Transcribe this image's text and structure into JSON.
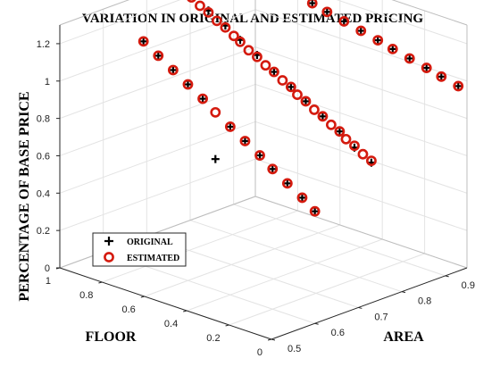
{
  "chart_data": {
    "type": "scatter3d",
    "title": "VARIATION IN ORIGINAL AND ESTIMATED PRICING",
    "xlabel": "FLOOR",
    "ylabel": "AREA",
    "zlabel": "PERCENTAGE OF BASE PRICE",
    "xlim": [
      0,
      1
    ],
    "ylim": [
      0.5,
      0.95
    ],
    "zlim": [
      0,
      1.3
    ],
    "x_ticks": [
      "1",
      "0.8",
      "0.6",
      "0.4",
      "0.2",
      "0"
    ],
    "y_ticks": [
      "0.5",
      "0.6",
      "0.7",
      "0.8",
      "0.9"
    ],
    "z_ticks": [
      "0",
      "0.2",
      "0.4",
      "0.6",
      "0.8",
      "1",
      "1.2"
    ],
    "grid": true,
    "legend_position": "bottom-left",
    "series": [
      {
        "name": "ORIGINAL",
        "marker": "plus",
        "color": "#000000",
        "points": [
          {
            "floor": 0.81,
            "area": 0.6,
            "price": 1.2
          },
          {
            "floor": 0.74,
            "area": 0.6,
            "price": 1.15
          },
          {
            "floor": 0.67,
            "area": 0.6,
            "price": 1.1
          },
          {
            "floor": 0.6,
            "area": 0.6,
            "price": 1.05
          },
          {
            "floor": 0.53,
            "area": 0.6,
            "price": 1.0
          },
          {
            "floor": 0.47,
            "area": 0.6,
            "price": 0.7
          },
          {
            "floor": 0.4,
            "area": 0.6,
            "price": 0.9
          },
          {
            "floor": 0.33,
            "area": 0.6,
            "price": 0.85
          },
          {
            "floor": 0.26,
            "area": 0.6,
            "price": 0.8
          },
          {
            "floor": 0.2,
            "area": 0.6,
            "price": 0.75
          },
          {
            "floor": 0.13,
            "area": 0.6,
            "price": 0.7
          },
          {
            "floor": 0.06,
            "area": 0.6,
            "price": 0.65
          },
          {
            "floor": 0.0,
            "area": 0.6,
            "price": 0.6
          },
          {
            "floor": 0.92,
            "area": 0.73,
            "price": 1.38
          },
          {
            "floor": 0.85,
            "area": 0.73,
            "price": 1.32
          },
          {
            "floor": 0.77,
            "area": 0.73,
            "price": 1.27
          },
          {
            "floor": 0.69,
            "area": 0.73,
            "price": 1.22
          },
          {
            "floor": 0.62,
            "area": 0.73,
            "price": 1.17
          },
          {
            "floor": 0.54,
            "area": 0.73,
            "price": 1.12
          },
          {
            "floor": 0.46,
            "area": 0.73,
            "price": 1.06
          },
          {
            "floor": 0.38,
            "area": 0.73,
            "price": 1.01
          },
          {
            "floor": 0.31,
            "area": 0.73,
            "price": 0.96
          },
          {
            "floor": 0.23,
            "area": 0.73,
            "price": 0.91
          },
          {
            "floor": 0.15,
            "area": 0.73,
            "price": 0.86
          },
          {
            "floor": 0.08,
            "area": 0.73,
            "price": 0.8
          },
          {
            "floor": 0.0,
            "area": 0.73,
            "price": 0.75
          },
          {
            "floor": 1.0,
            "area": 0.93,
            "price": 1.25
          },
          {
            "floor": 0.92,
            "area": 0.93,
            "price": 1.23
          },
          {
            "floor": 0.85,
            "area": 0.93,
            "price": 1.21
          },
          {
            "floor": 0.77,
            "area": 0.93,
            "price": 1.19
          },
          {
            "floor": 0.69,
            "area": 0.93,
            "price": 1.17
          },
          {
            "floor": 0.62,
            "area": 0.93,
            "price": 1.15
          },
          {
            "floor": 0.54,
            "area": 0.93,
            "price": 1.13
          },
          {
            "floor": 0.46,
            "area": 0.93,
            "price": 1.11
          },
          {
            "floor": 0.38,
            "area": 0.93,
            "price": 1.09
          },
          {
            "floor": 0.31,
            "area": 0.93,
            "price": 1.07
          },
          {
            "floor": 0.23,
            "area": 0.93,
            "price": 1.05
          },
          {
            "floor": 0.15,
            "area": 0.93,
            "price": 1.03
          },
          {
            "floor": 0.08,
            "area": 0.93,
            "price": 1.01
          },
          {
            "floor": 0.0,
            "area": 0.93,
            "price": 0.99
          }
        ]
      },
      {
        "name": "ESTIMATED",
        "marker": "circle",
        "color": "#d41a0e",
        "points": [
          {
            "floor": 0.81,
            "area": 0.6,
            "price": 1.2
          },
          {
            "floor": 0.74,
            "area": 0.6,
            "price": 1.15
          },
          {
            "floor": 0.67,
            "area": 0.6,
            "price": 1.1
          },
          {
            "floor": 0.6,
            "area": 0.6,
            "price": 1.05
          },
          {
            "floor": 0.53,
            "area": 0.6,
            "price": 1.0
          },
          {
            "floor": 0.47,
            "area": 0.6,
            "price": 0.95
          },
          {
            "floor": 0.4,
            "area": 0.6,
            "price": 0.9
          },
          {
            "floor": 0.33,
            "area": 0.6,
            "price": 0.85
          },
          {
            "floor": 0.26,
            "area": 0.6,
            "price": 0.8
          },
          {
            "floor": 0.2,
            "area": 0.6,
            "price": 0.75
          },
          {
            "floor": 0.13,
            "area": 0.6,
            "price": 0.7
          },
          {
            "floor": 0.06,
            "area": 0.6,
            "price": 0.65
          },
          {
            "floor": 0.0,
            "area": 0.6,
            "price": 0.6
          },
          {
            "floor": 0.92,
            "area": 0.73,
            "price": 1.36
          },
          {
            "floor": 0.88,
            "area": 0.73,
            "price": 1.33
          },
          {
            "floor": 0.85,
            "area": 0.73,
            "price": 1.31
          },
          {
            "floor": 0.81,
            "area": 0.73,
            "price": 1.28
          },
          {
            "floor": 0.77,
            "area": 0.73,
            "price": 1.26
          },
          {
            "floor": 0.73,
            "area": 0.73,
            "price": 1.23
          },
          {
            "floor": 0.69,
            "area": 0.73,
            "price": 1.21
          },
          {
            "floor": 0.65,
            "area": 0.73,
            "price": 1.18
          },
          {
            "floor": 0.62,
            "area": 0.73,
            "price": 1.16
          },
          {
            "floor": 0.58,
            "area": 0.73,
            "price": 1.13
          },
          {
            "floor": 0.54,
            "area": 0.73,
            "price": 1.11
          },
          {
            "floor": 0.5,
            "area": 0.73,
            "price": 1.08
          },
          {
            "floor": 0.46,
            "area": 0.73,
            "price": 1.06
          },
          {
            "floor": 0.42,
            "area": 0.73,
            "price": 1.03
          },
          {
            "floor": 0.38,
            "area": 0.73,
            "price": 1.01
          },
          {
            "floor": 0.35,
            "area": 0.73,
            "price": 0.98
          },
          {
            "floor": 0.31,
            "area": 0.73,
            "price": 0.96
          },
          {
            "floor": 0.27,
            "area": 0.73,
            "price": 0.93
          },
          {
            "floor": 0.23,
            "area": 0.73,
            "price": 0.91
          },
          {
            "floor": 0.19,
            "area": 0.73,
            "price": 0.88
          },
          {
            "floor": 0.15,
            "area": 0.73,
            "price": 0.86
          },
          {
            "floor": 0.12,
            "area": 0.73,
            "price": 0.83
          },
          {
            "floor": 0.08,
            "area": 0.73,
            "price": 0.81
          },
          {
            "floor": 0.04,
            "area": 0.73,
            "price": 0.78
          },
          {
            "floor": 0.0,
            "area": 0.73,
            "price": 0.76
          },
          {
            "floor": 1.0,
            "area": 0.93,
            "price": 1.25
          },
          {
            "floor": 0.92,
            "area": 0.93,
            "price": 1.23
          },
          {
            "floor": 0.85,
            "area": 0.93,
            "price": 1.21
          },
          {
            "floor": 0.77,
            "area": 0.93,
            "price": 1.19
          },
          {
            "floor": 0.69,
            "area": 0.93,
            "price": 1.17
          },
          {
            "floor": 0.62,
            "area": 0.93,
            "price": 1.15
          },
          {
            "floor": 0.54,
            "area": 0.93,
            "price": 1.13
          },
          {
            "floor": 0.46,
            "area": 0.93,
            "price": 1.11
          },
          {
            "floor": 0.38,
            "area": 0.93,
            "price": 1.09
          },
          {
            "floor": 0.31,
            "area": 0.93,
            "price": 1.07
          },
          {
            "floor": 0.23,
            "area": 0.93,
            "price": 1.05
          },
          {
            "floor": 0.15,
            "area": 0.93,
            "price": 1.03
          },
          {
            "floor": 0.08,
            "area": 0.93,
            "price": 1.01
          },
          {
            "floor": 0.0,
            "area": 0.93,
            "price": 0.99
          }
        ]
      }
    ]
  }
}
